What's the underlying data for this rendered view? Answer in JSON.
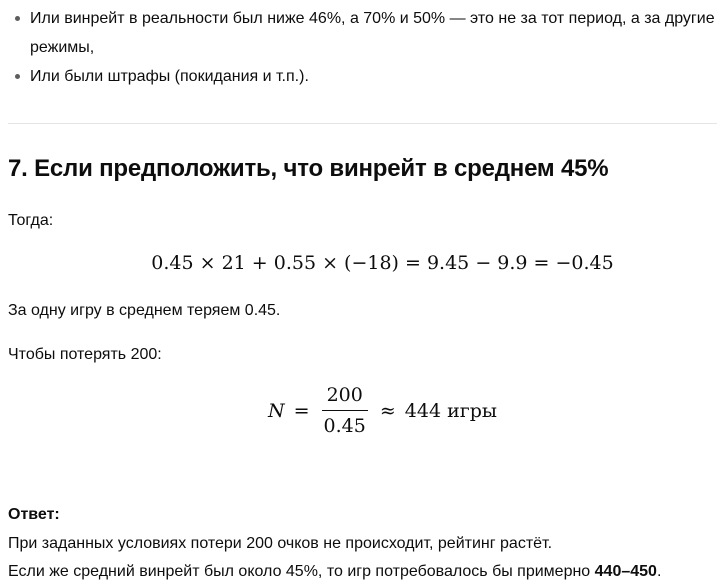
{
  "colors": {
    "background": "#ffffff",
    "text": "#0d0d0d",
    "divider": "#e5e5e5",
    "bullet_marker": "#5d5d5d"
  },
  "content": {
    "bullets": [
      "Или винрейт в реальности был ниже 46%, а 70% и 50% — это не за тот период, а за другие режимы,",
      "Или были штрафы (покидания и т.п.)."
    ],
    "heading": "7. Если предположить, что винрейт в среднем 45%",
    "para_then": "Тогда:",
    "formula_ev": "0.45 × 21 + 0.55 × (−18) = 9.45 − 9.9 = −0.45",
    "para_loss": "За одну игру в среднем теряем 0.45.",
    "para_to_lose": "Чтобы потерять 200:",
    "formula_n": {
      "lhs": "N",
      "eq": "=",
      "numerator": "200",
      "denominator": "0.45",
      "approx": "≈",
      "result": "444 игры"
    },
    "answer": {
      "label": "Ответ:",
      "line1": "При заданных условиях потери 200 очков не происходит, рейтинг растёт.",
      "line2_prefix": "Если же средний винрейт был около 45%, то игр потребовалось бы примерно ",
      "line2_bold": "440–450",
      "line2_suffix": "."
    }
  }
}
